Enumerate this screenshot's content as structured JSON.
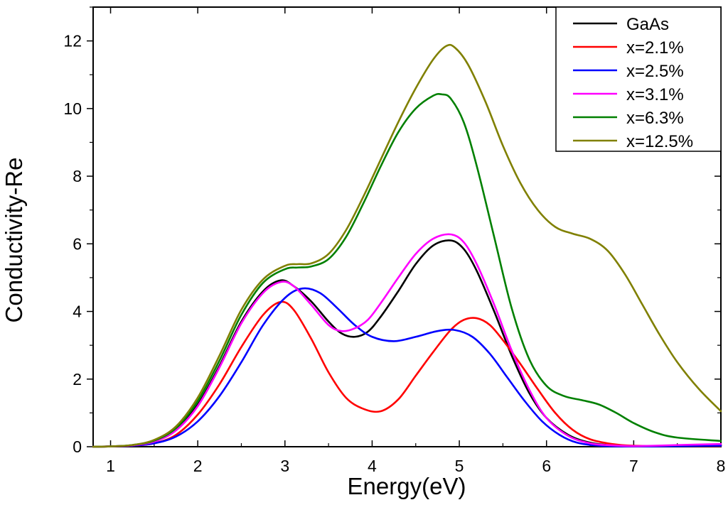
{
  "chart_data": {
    "type": "line",
    "title": "",
    "xlabel": "Energy(eV)",
    "ylabel": "Conductivity-Re",
    "xlim": [
      0.8,
      8
    ],
    "ylim": [
      0,
      13
    ],
    "xticks": [
      1,
      2,
      3,
      4,
      5,
      6,
      7,
      8
    ],
    "yticks": [
      0,
      2,
      4,
      6,
      8,
      10,
      12
    ],
    "legend_position": "top-right",
    "grid": false,
    "series": [
      {
        "name": "GaAs",
        "color": "#000000",
        "x": [
          0.8,
          1.0,
          1.25,
          1.5,
          1.75,
          2.0,
          2.25,
          2.5,
          2.75,
          2.95,
          3.1,
          3.3,
          3.5,
          3.65,
          3.8,
          3.95,
          4.1,
          4.3,
          4.5,
          4.7,
          4.9,
          5.05,
          5.2,
          5.4,
          5.6,
          5.8,
          6.0,
          6.25,
          6.5,
          6.75,
          7.0,
          7.25,
          7.5,
          8.0
        ],
        "y": [
          0.0,
          0.01,
          0.04,
          0.15,
          0.5,
          1.25,
          2.4,
          3.7,
          4.6,
          4.92,
          4.75,
          4.3,
          3.7,
          3.35,
          3.25,
          3.4,
          3.85,
          4.6,
          5.4,
          5.95,
          6.1,
          5.85,
          5.2,
          4.0,
          2.7,
          1.6,
          0.85,
          0.35,
          0.12,
          0.04,
          0.02,
          0.02,
          0.03,
          0.05
        ]
      },
      {
        "name": "x=2.1%",
        "color": "#ff0000",
        "x": [
          0.8,
          1.0,
          1.25,
          1.5,
          1.75,
          2.0,
          2.25,
          2.5,
          2.75,
          2.95,
          3.1,
          3.3,
          3.5,
          3.7,
          3.9,
          4.1,
          4.3,
          4.5,
          4.7,
          4.9,
          5.05,
          5.2,
          5.35,
          5.5,
          5.7,
          5.9,
          6.1,
          6.3,
          6.5,
          6.75,
          7.0,
          7.5,
          8.0
        ],
        "y": [
          0.0,
          0.01,
          0.03,
          0.1,
          0.35,
          0.95,
          1.85,
          2.95,
          3.9,
          4.28,
          4.05,
          3.2,
          2.2,
          1.45,
          1.12,
          1.05,
          1.4,
          2.1,
          2.8,
          3.45,
          3.75,
          3.8,
          3.6,
          3.15,
          2.45,
          1.7,
          1.0,
          0.5,
          0.22,
          0.08,
          0.03,
          0.02,
          0.02
        ]
      },
      {
        "name": "x=2.5%",
        "color": "#0000ff",
        "x": [
          0.8,
          1.0,
          1.25,
          1.5,
          1.75,
          2.0,
          2.25,
          2.5,
          2.75,
          3.0,
          3.2,
          3.4,
          3.6,
          3.8,
          4.0,
          4.25,
          4.5,
          4.75,
          4.95,
          5.15,
          5.35,
          5.55,
          5.75,
          5.95,
          6.15,
          6.35,
          6.6,
          6.9,
          7.2,
          7.6,
          8.0
        ],
        "y": [
          0.0,
          0.01,
          0.03,
          0.1,
          0.3,
          0.75,
          1.5,
          2.5,
          3.6,
          4.4,
          4.68,
          4.55,
          4.1,
          3.6,
          3.25,
          3.12,
          3.25,
          3.42,
          3.45,
          3.25,
          2.75,
          2.05,
          1.35,
          0.75,
          0.35,
          0.12,
          0.03,
          0.01,
          0.01,
          0.02,
          0.03
        ]
      },
      {
        "name": "x=3.1%",
        "color": "#ff00ff",
        "x": [
          0.8,
          1.0,
          1.25,
          1.5,
          1.75,
          2.0,
          2.25,
          2.5,
          2.75,
          2.95,
          3.1,
          3.3,
          3.5,
          3.65,
          3.8,
          3.95,
          4.1,
          4.3,
          4.5,
          4.7,
          4.9,
          5.05,
          5.2,
          5.4,
          5.6,
          5.8,
          6.0,
          6.25,
          6.5,
          6.75,
          7.0,
          7.25,
          7.5,
          8.0
        ],
        "y": [
          0.0,
          0.01,
          0.04,
          0.15,
          0.48,
          1.2,
          2.35,
          3.65,
          4.55,
          4.87,
          4.75,
          4.2,
          3.6,
          3.42,
          3.5,
          3.75,
          4.25,
          5.0,
          5.7,
          6.15,
          6.28,
          6.05,
          5.4,
          4.2,
          2.85,
          1.7,
          0.85,
          0.32,
          0.1,
          0.04,
          0.02,
          0.03,
          0.05,
          0.08
        ]
      },
      {
        "name": "x=6.3%",
        "color": "#008000",
        "x": [
          0.8,
          1.0,
          1.25,
          1.5,
          1.75,
          2.0,
          2.25,
          2.5,
          2.75,
          3.0,
          3.15,
          3.3,
          3.5,
          3.7,
          3.9,
          4.1,
          4.3,
          4.5,
          4.7,
          4.8,
          4.9,
          5.05,
          5.2,
          5.4,
          5.6,
          5.8,
          6.0,
          6.2,
          6.4,
          6.6,
          6.8,
          7.0,
          7.25,
          7.5,
          8.0
        ],
        "y": [
          0.0,
          0.01,
          0.05,
          0.18,
          0.55,
          1.35,
          2.55,
          3.9,
          4.85,
          5.25,
          5.3,
          5.33,
          5.55,
          6.2,
          7.2,
          8.3,
          9.3,
          10.0,
          10.38,
          10.42,
          10.3,
          9.6,
          8.3,
          6.2,
          4.1,
          2.6,
          1.8,
          1.5,
          1.38,
          1.25,
          1.0,
          0.7,
          0.42,
          0.27,
          0.17
        ]
      },
      {
        "name": "x=12.5%",
        "color": "#808000",
        "x": [
          0.8,
          1.0,
          1.25,
          1.5,
          1.75,
          2.0,
          2.25,
          2.5,
          2.75,
          3.0,
          3.15,
          3.3,
          3.5,
          3.7,
          3.9,
          4.1,
          4.3,
          4.5,
          4.7,
          4.85,
          4.95,
          5.1,
          5.3,
          5.5,
          5.7,
          5.9,
          6.1,
          6.3,
          6.5,
          6.7,
          6.9,
          7.1,
          7.3,
          7.5,
          7.75,
          8.0
        ],
        "y": [
          0.0,
          0.01,
          0.05,
          0.2,
          0.6,
          1.45,
          2.7,
          4.05,
          4.95,
          5.35,
          5.4,
          5.42,
          5.7,
          6.4,
          7.4,
          8.5,
          9.6,
          10.6,
          11.45,
          11.85,
          11.8,
          11.3,
          10.2,
          8.9,
          7.8,
          7.0,
          6.5,
          6.3,
          6.15,
          5.8,
          5.1,
          4.2,
          3.3,
          2.5,
          1.7,
          1.05
        ]
      }
    ]
  }
}
